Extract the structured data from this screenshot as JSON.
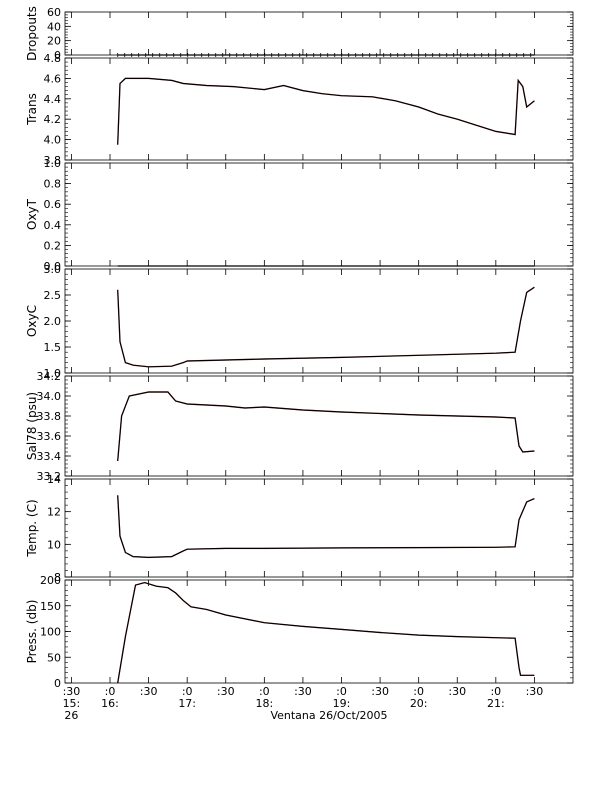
{
  "figure": {
    "caption": "Ventana 26/Oct/2005",
    "date_label": "26/Oct/2005",
    "vehicle": "Ventana"
  },
  "colors": {
    "axis": "#000000",
    "trace": "#000000",
    "raw": "#cc0000"
  },
  "chart_data": [
    {
      "type": "line",
      "ylabel": "Dropouts",
      "ylim": [
        0,
        60
      ],
      "yticks": [
        0,
        20,
        40,
        60
      ],
      "yticklabels": [
        "0",
        "20",
        "40",
        "60"
      ],
      "series": [
        {
          "values": [
            [
              16.1,
              0
            ],
            [
              21.5,
              0
            ]
          ]
        }
      ]
    },
    {
      "type": "line",
      "ylabel": "Trans",
      "ylim": [
        3.8,
        4.8
      ],
      "yticks": [
        3.8,
        4.0,
        4.2,
        4.4,
        4.6,
        4.8
      ],
      "yticklabels": [
        "3.8",
        "4.0",
        "4.2",
        "4.4",
        "4.6",
        "4.8"
      ],
      "series": [
        {
          "values": [
            [
              16.1,
              3.95
            ],
            [
              16.13,
              4.55
            ],
            [
              16.2,
              4.6
            ],
            [
              16.5,
              4.6
            ],
            [
              16.8,
              4.58
            ],
            [
              16.95,
              4.55
            ],
            [
              17.25,
              4.53
            ],
            [
              17.6,
              4.52
            ],
            [
              18.0,
              4.49
            ],
            [
              18.25,
              4.53
            ],
            [
              18.5,
              4.48
            ],
            [
              18.75,
              4.45
            ],
            [
              19.0,
              4.43
            ],
            [
              19.4,
              4.42
            ],
            [
              19.7,
              4.38
            ],
            [
              20.0,
              4.32
            ],
            [
              20.25,
              4.25
            ],
            [
              20.5,
              4.2
            ],
            [
              20.75,
              4.14
            ],
            [
              21.0,
              4.08
            ],
            [
              21.25,
              4.05
            ],
            [
              21.29,
              4.58
            ],
            [
              21.35,
              4.52
            ],
            [
              21.4,
              4.32
            ],
            [
              21.5,
              4.38
            ]
          ]
        }
      ]
    },
    {
      "type": "line",
      "ylabel": "OxyT",
      "ylim": [
        0.0,
        1.0
      ],
      "yticks": [
        0.0,
        0.2,
        0.4,
        0.6,
        0.8,
        1.0
      ],
      "yticklabels": [
        "0.0",
        "0.2",
        "0.4",
        "0.6",
        "0.8",
        "1.0"
      ],
      "series": [
        {
          "values": [
            [
              16.1,
              0
            ],
            [
              21.5,
              0
            ]
          ]
        }
      ]
    },
    {
      "type": "line",
      "ylabel": "OxyC",
      "ylim": [
        1.0,
        3.0
      ],
      "yticks": [
        1.0,
        1.5,
        2.0,
        2.5,
        3.0
      ],
      "yticklabels": [
        "1.0",
        "1.5",
        "2.0",
        "2.5",
        "3.0"
      ],
      "series": [
        {
          "values": [
            [
              16.1,
              2.6
            ],
            [
              16.13,
              1.6
            ],
            [
              16.2,
              1.2
            ],
            [
              16.3,
              1.15
            ],
            [
              16.5,
              1.12
            ],
            [
              16.8,
              1.13
            ],
            [
              16.95,
              1.2
            ],
            [
              17.0,
              1.23
            ],
            [
              17.5,
              1.25
            ],
            [
              18.0,
              1.27
            ],
            [
              19.0,
              1.3
            ],
            [
              20.0,
              1.34
            ],
            [
              21.0,
              1.38
            ],
            [
              21.25,
              1.4
            ],
            [
              21.32,
              2.0
            ],
            [
              21.4,
              2.55
            ],
            [
              21.5,
              2.65
            ]
          ]
        }
      ]
    },
    {
      "type": "line",
      "ylabel": "Sal78 (psu)",
      "ylim": [
        33.2,
        34.2
      ],
      "yticks": [
        33.2,
        33.4,
        33.6,
        33.8,
        34.0,
        34.2
      ],
      "yticklabels": [
        "33.2",
        "33.4",
        "33.6",
        "33.8",
        "34.0",
        "34.2"
      ],
      "series": [
        {
          "values": [
            [
              16.1,
              33.35
            ],
            [
              16.15,
              33.8
            ],
            [
              16.25,
              34.0
            ],
            [
              16.5,
              34.04
            ],
            [
              16.75,
              34.04
            ],
            [
              16.85,
              33.95
            ],
            [
              17.0,
              33.92
            ],
            [
              17.5,
              33.9
            ],
            [
              17.75,
              33.88
            ],
            [
              18.0,
              33.89
            ],
            [
              18.5,
              33.86
            ],
            [
              19.0,
              33.84
            ],
            [
              20.0,
              33.81
            ],
            [
              21.0,
              33.79
            ],
            [
              21.25,
              33.78
            ],
            [
              21.3,
              33.5
            ],
            [
              21.35,
              33.44
            ],
            [
              21.5,
              33.45
            ]
          ]
        }
      ]
    },
    {
      "type": "line",
      "ylabel": "Temp. (C)",
      "ylim": [
        8,
        14
      ],
      "yticks": [
        8,
        10,
        12,
        14
      ],
      "yticklabels": [
        "8",
        "10",
        "12",
        "14"
      ],
      "series": [
        {
          "values": [
            [
              16.1,
              13.0
            ],
            [
              16.13,
              10.5
            ],
            [
              16.2,
              9.5
            ],
            [
              16.3,
              9.25
            ],
            [
              16.5,
              9.2
            ],
            [
              16.8,
              9.25
            ],
            [
              16.95,
              9.6
            ],
            [
              17.0,
              9.7
            ],
            [
              17.5,
              9.75
            ],
            [
              18.0,
              9.75
            ],
            [
              19.0,
              9.78
            ],
            [
              20.0,
              9.8
            ],
            [
              21.0,
              9.82
            ],
            [
              21.25,
              9.85
            ],
            [
              21.3,
              11.5
            ],
            [
              21.4,
              12.6
            ],
            [
              21.5,
              12.8
            ]
          ]
        }
      ]
    },
    {
      "type": "line",
      "ylabel": "Press. (db)",
      "ylim": [
        0,
        200
      ],
      "yticks": [
        0,
        50,
        100,
        150,
        200
      ],
      "yticklabels": [
        "0",
        "50",
        "100",
        "150",
        "200"
      ],
      "series": [
        {
          "values": [
            [
              16.1,
              0
            ],
            [
              16.2,
              90
            ],
            [
              16.33,
              190
            ],
            [
              16.45,
              195
            ],
            [
              16.6,
              188
            ],
            [
              16.75,
              185
            ],
            [
              16.85,
              175
            ],
            [
              16.95,
              160
            ],
            [
              17.05,
              148
            ],
            [
              17.25,
              143
            ],
            [
              17.5,
              132
            ],
            [
              18.0,
              117
            ],
            [
              18.5,
              110
            ],
            [
              19.0,
              104
            ],
            [
              19.5,
              98
            ],
            [
              20.0,
              93
            ],
            [
              20.5,
              90
            ],
            [
              21.0,
              88
            ],
            [
              21.25,
              87
            ],
            [
              21.3,
              30
            ],
            [
              21.32,
              15
            ],
            [
              21.5,
              15
            ]
          ]
        }
      ]
    }
  ],
  "xaxis": {
    "xlim": [
      15.4167,
      22.0
    ],
    "ticks": [
      {
        "x": 15.5,
        "label": ":30"
      },
      {
        "x": 16.0,
        "label": ":0"
      },
      {
        "x": 16.5,
        "label": ":30"
      },
      {
        "x": 17.0,
        "label": ":0"
      },
      {
        "x": 17.5,
        "label": ":30"
      },
      {
        "x": 18.0,
        "label": ":0"
      },
      {
        "x": 18.5,
        "label": ":30"
      },
      {
        "x": 19.0,
        "label": ":0"
      },
      {
        "x": 19.5,
        "label": ":30"
      },
      {
        "x": 20.0,
        "label": ":0"
      },
      {
        "x": 20.5,
        "label": ":30"
      },
      {
        "x": 21.0,
        "label": ":0"
      },
      {
        "x": 21.5,
        "label": ":30"
      }
    ],
    "hour_labels": [
      {
        "x": 15.5,
        "label": "15:"
      },
      {
        "x": 16.0,
        "label": "16:"
      },
      {
        "x": 17.0,
        "label": "17:"
      },
      {
        "x": 18.0,
        "label": "18:"
      },
      {
        "x": 19.0,
        "label": "19:"
      },
      {
        "x": 20.0,
        "label": "20:"
      },
      {
        "x": 21.0,
        "label": "21:"
      }
    ],
    "day_label": {
      "x": 15.5,
      "label": "26"
    }
  }
}
